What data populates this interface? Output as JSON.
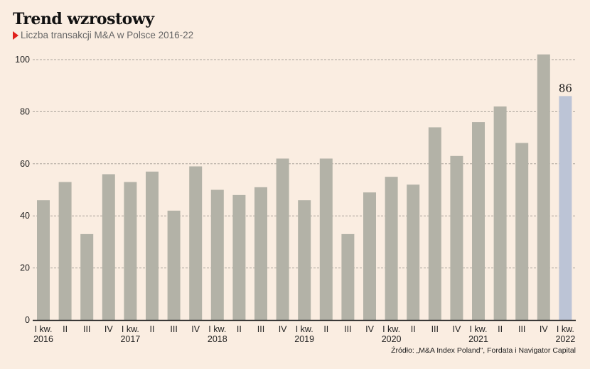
{
  "header": {
    "title": "Trend wzrostowy",
    "subtitle": "Liczba transakcji M&A w Polsce 2016-22"
  },
  "source": "Źródło: „M&A Index Poland\", Fordata i Navigator Capital",
  "colors": {
    "bar": "#b3b2a7",
    "highlight": "#bcc4d6",
    "background": "#faede1",
    "accent": "#e0201b"
  },
  "chart_data": {
    "type": "bar",
    "title": "Trend wzrostowy",
    "subtitle": "Liczba transakcji M&A w Polsce 2016-22",
    "categories": [
      "I kw. 2016",
      "II",
      "III",
      "IV",
      "I kw. 2017",
      "II",
      "III",
      "IV",
      "I kw. 2018",
      "II",
      "III",
      "IV",
      "I kw. 2019",
      "II",
      "III",
      "IV",
      "I kw. 2020",
      "II",
      "III",
      "IV",
      "I kw. 2021",
      "II",
      "III",
      "IV",
      "I kw. 2022"
    ],
    "x_labels": [
      {
        "top": "I kw.",
        "bottom": "2016"
      },
      {
        "top": "II",
        "bottom": ""
      },
      {
        "top": "III",
        "bottom": ""
      },
      {
        "top": "IV",
        "bottom": ""
      },
      {
        "top": "I kw.",
        "bottom": "2017"
      },
      {
        "top": "II",
        "bottom": ""
      },
      {
        "top": "III",
        "bottom": ""
      },
      {
        "top": "IV",
        "bottom": ""
      },
      {
        "top": "I kw.",
        "bottom": "2018"
      },
      {
        "top": "II",
        "bottom": ""
      },
      {
        "top": "III",
        "bottom": ""
      },
      {
        "top": "IV",
        "bottom": ""
      },
      {
        "top": "I kw.",
        "bottom": "2019"
      },
      {
        "top": "II",
        "bottom": ""
      },
      {
        "top": "III",
        "bottom": ""
      },
      {
        "top": "IV",
        "bottom": ""
      },
      {
        "top": "I kw.",
        "bottom": "2020"
      },
      {
        "top": "II",
        "bottom": ""
      },
      {
        "top": "III",
        "bottom": ""
      },
      {
        "top": "IV",
        "bottom": ""
      },
      {
        "top": "I kw.",
        "bottom": "2021"
      },
      {
        "top": "II",
        "bottom": ""
      },
      {
        "top": "III",
        "bottom": ""
      },
      {
        "top": "IV",
        "bottom": ""
      },
      {
        "top": "I kw.",
        "bottom": "2022"
      }
    ],
    "values": [
      46,
      53,
      33,
      56,
      53,
      57,
      42,
      59,
      50,
      48,
      51,
      62,
      46,
      62,
      33,
      49,
      55,
      52,
      74,
      63,
      76,
      82,
      68,
      102,
      86
    ],
    "highlight_index": 24,
    "data_labels": [
      {
        "index": 24,
        "text": "86"
      }
    ],
    "yticks": [
      0,
      20,
      40,
      60,
      80,
      100
    ],
    "ylim": [
      0,
      100
    ],
    "grid": true,
    "xlabel": "",
    "ylabel": ""
  }
}
